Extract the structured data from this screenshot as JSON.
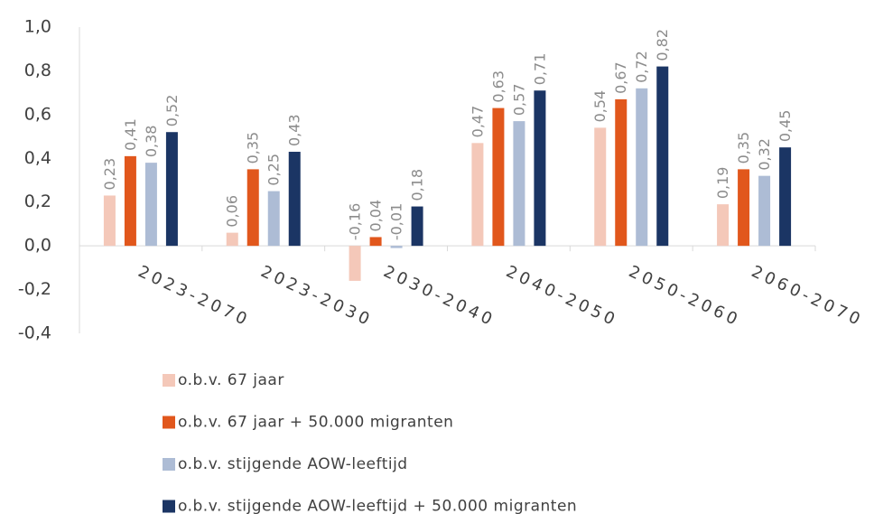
{
  "chart_data": {
    "type": "bar",
    "categories": [
      "2023-2070",
      "2023-2030",
      "2030-2040",
      "2040-2050",
      "2050-2060",
      "2060-2070"
    ],
    "series": [
      {
        "name": "o.b.v. 67 jaar",
        "color": "#f4c8b9",
        "values": [
          0.23,
          0.06,
          -0.16,
          0.47,
          0.54,
          0.19
        ],
        "value_labels": [
          "0,23",
          "0,06",
          "-0,16",
          "0,47",
          "0,54",
          "0,19"
        ]
      },
      {
        "name": "o.b.v. 67 jaar + 50.000 migranten",
        "color": "#e1571c",
        "values": [
          0.41,
          0.35,
          0.04,
          0.63,
          0.67,
          0.35
        ],
        "value_labels": [
          "0,41",
          "0,35",
          "0,04",
          "0,63",
          "0,67",
          "0,35"
        ]
      },
      {
        "name": "o.b.v. stijgende AOW-leeftijd",
        "color": "#adbcd5",
        "values": [
          0.38,
          0.25,
          -0.01,
          0.57,
          0.72,
          0.32
        ],
        "value_labels": [
          "0,38",
          "0,25",
          "-0,01",
          "0,57",
          "0,72",
          "0,32"
        ]
      },
      {
        "name": "o.b.v. stijgende AOW-leeftijd + 50.000 migranten",
        "color": "#1b3564",
        "values": [
          0.52,
          0.43,
          0.18,
          0.71,
          0.82,
          0.45
        ],
        "value_labels": [
          "0,52",
          "0,43",
          "0,18",
          "0,71",
          "0,82",
          "0,45"
        ]
      }
    ],
    "ylim": [
      -0.4,
      1.0
    ],
    "yticks": [
      {
        "value": -0.4,
        "label": "-0,4"
      },
      {
        "value": -0.2,
        "label": "-0,2"
      },
      {
        "value": 0,
        "label": "0,0"
      },
      {
        "value": 0.2,
        "label": "0,2"
      },
      {
        "value": 0.4,
        "label": "0,4"
      },
      {
        "value": 0.6,
        "label": "0,6"
      },
      {
        "value": 0.8,
        "label": "0,8"
      },
      {
        "value": 1.0,
        "label": "1,0"
      }
    ],
    "grid": false,
    "legend": "bottom"
  }
}
